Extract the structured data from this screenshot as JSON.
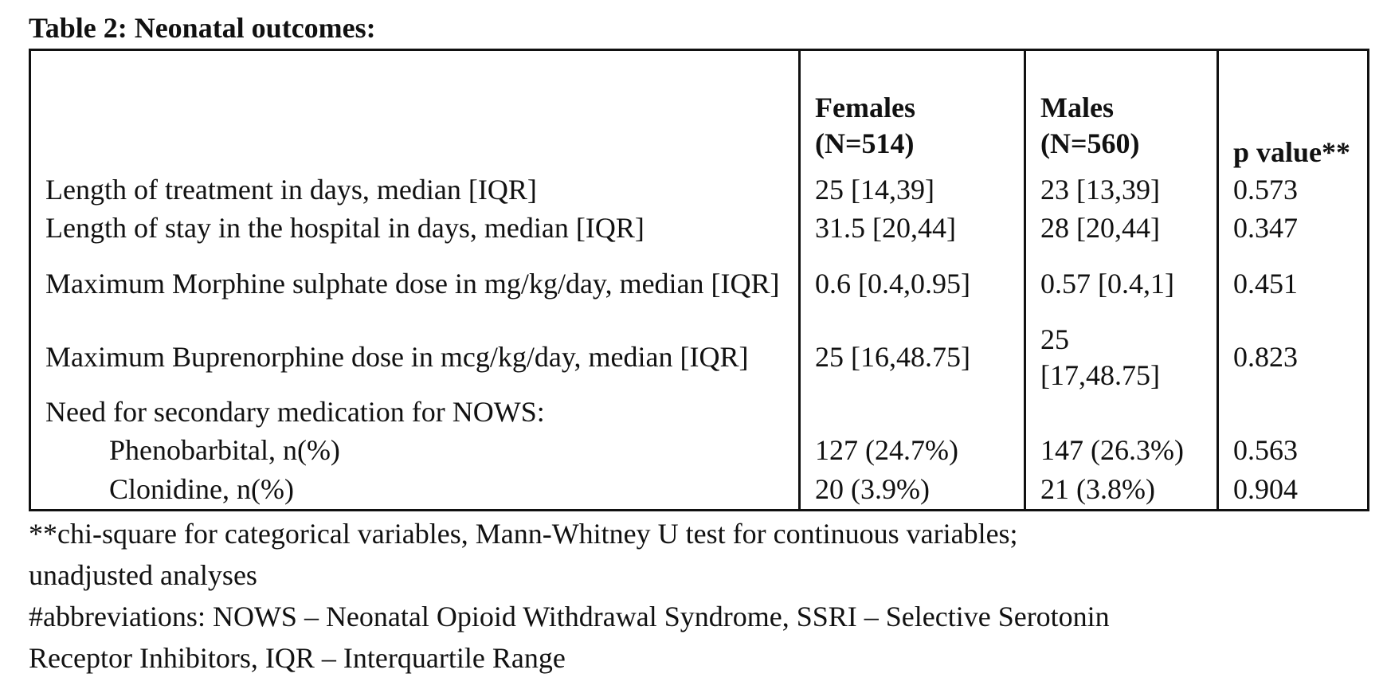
{
  "title": "Table 2: Neonatal outcomes:",
  "table": {
    "headers": {
      "label": "",
      "females": "Females (N=514)",
      "males": "Males (N=560)",
      "p_value": "p value**"
    },
    "rows": [
      {
        "label": "Length of treatment in days, median [IQR]",
        "females": "25 [14,39]",
        "males": "23 [13,39]",
        "p": "0.573"
      },
      {
        "label": "Length of stay in the hospital in days, median [IQR]",
        "females": "31.5 [20,44]",
        "males": "28 [20,44]",
        "p": "0.347"
      },
      {
        "label": "Maximum Morphine sulphate dose in mg/kg/day, median [IQR]",
        "females": "0.6 [0.4,0.95]",
        "males": "0.57 [0.4,1]",
        "p": "0.451"
      },
      {
        "label": "Maximum Buprenorphine dose in mcg/kg/day, median [IQR]",
        "females": "25 [16,48.75]",
        "males": "25 [17,48.75]",
        "p": "0.823"
      },
      {
        "label": "Need for secondary medication for NOWS:",
        "females": "",
        "males": "",
        "p": ""
      },
      {
        "label": "Phenobarbital, n(%)",
        "females": "127 (24.7%)",
        "males": "147 (26.3%)",
        "p": "0.563"
      },
      {
        "label": "Clonidine, n(%)",
        "females": "20 (3.9%)",
        "males": "21 (3.8%)",
        "p": "0.904"
      }
    ]
  },
  "footnotes": {
    "line1": "**chi-square for categorical variables, Mann-Whitney U test for continuous variables;",
    "line2": "unadjusted analyses",
    "line3": "#abbreviations: NOWS – Neonatal Opioid Withdrawal Syndrome, SSRI – Selective Serotonin",
    "line4": "Receptor Inhibitors, IQR – Interquartile Range"
  }
}
